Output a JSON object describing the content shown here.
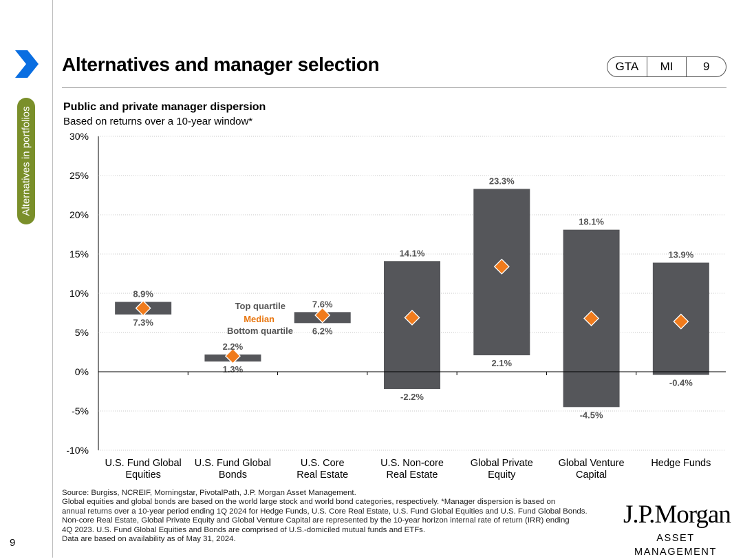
{
  "page": {
    "number": "9",
    "side_label": "Alternatives in portfolios"
  },
  "header": {
    "title": "Alternatives and manager selection",
    "tags": [
      "GTA",
      "MI",
      "9"
    ]
  },
  "chart_data": {
    "type": "bar",
    "title": "Public and private manager dispersion",
    "subtitle": "Based on returns over a 10-year window*",
    "categories": [
      [
        "U.S. Fund Global",
        "Equities"
      ],
      [
        "U.S. Fund Global",
        "Bonds"
      ],
      [
        "U.S. Core",
        "Real Estate"
      ],
      [
        "U.S. Non-core",
        "Real Estate"
      ],
      [
        "Global Private",
        "Equity"
      ],
      [
        "Global Venture",
        "Capital"
      ],
      [
        "Hedge Funds"
      ]
    ],
    "series": [
      {
        "name": "Top quartile",
        "values": [
          8.9,
          2.2,
          7.6,
          14.1,
          23.3,
          18.1,
          13.9
        ]
      },
      {
        "name": "Median",
        "values": [
          8.1,
          2.0,
          7.2,
          6.9,
          13.4,
          6.8,
          6.4
        ]
      },
      {
        "name": "Bottom quartile",
        "values": [
          7.3,
          1.3,
          6.2,
          -2.2,
          2.1,
          -4.5,
          -0.4
        ]
      }
    ],
    "top_labels": [
      "8.9%",
      "2.2%",
      "7.6%",
      "14.1%",
      "23.3%",
      "18.1%",
      "13.9%"
    ],
    "bottom_labels": [
      "7.3%",
      "1.3%",
      "6.2%",
      "-2.2%",
      "2.1%",
      "-4.5%",
      "-0.4%"
    ],
    "legend": {
      "top": "Top quartile",
      "median": "Median",
      "bottom": "Bottom quartile"
    },
    "yticks": [
      30,
      25,
      20,
      15,
      10,
      5,
      0,
      -5,
      -10
    ],
    "ytick_labels": [
      "30%",
      "25%",
      "20%",
      "15%",
      "10%",
      "5%",
      "0%",
      "-5%",
      "-10%"
    ],
    "ylim": [
      -10,
      30
    ],
    "colors": {
      "bar": "#55565a",
      "median": "#f07b1c",
      "legend_median": "#e8760f"
    }
  },
  "footer": {
    "source_lines": [
      "Source: Burgiss, NCREIF, Morningstar, PivotalPath, J.P. Morgan Asset Management.",
      "Global equities and global bonds are based on the world large stock and world bond categories, respectively. *Manager dispersion is based on",
      "annual returns over a 10-year period ending 1Q 2024 for Hedge Funds, U.S. Core Real Estate, U.S. Fund Global Equities and U.S. Fund Global Bonds.",
      "Non-core Real Estate, Global Private Equity and Global Venture Capital are represented by the 10-year horizon internal rate of return (IRR) ending",
      "4Q 2023. U.S. Fund Global Equities and Bonds are comprised of U.S.-domiciled mutual funds and ETFs.",
      "Data are based on availability as of May 31, 2024."
    ],
    "logo_line1": "J.P.Morgan",
    "logo_line2": "ASSET MANAGEMENT"
  },
  "colors": {
    "accent_blue": "#0a6ee1",
    "side_label_bg": "#7a8f2a"
  }
}
